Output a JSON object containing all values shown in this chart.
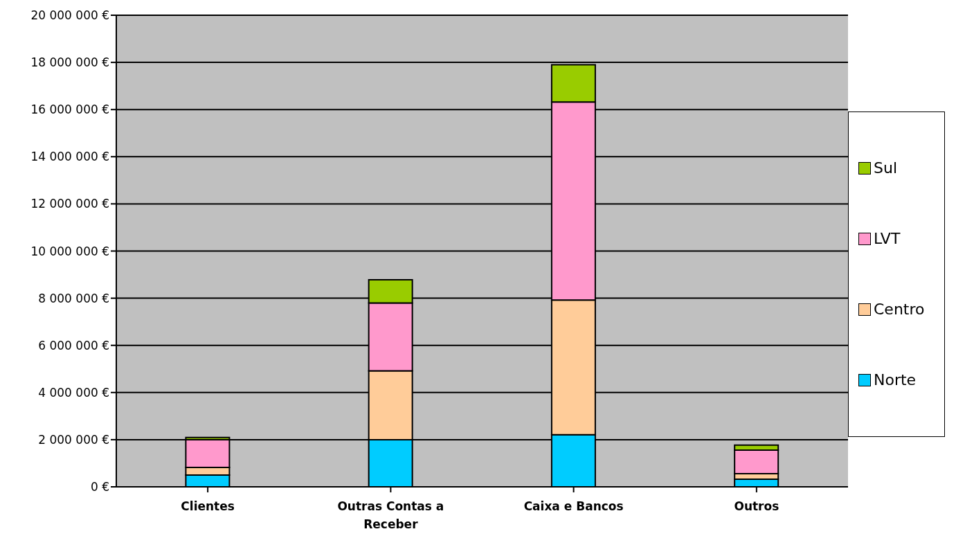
{
  "chart_data": {
    "type": "bar",
    "stacked": true,
    "categories": [
      "Clientes",
      "Outras Contas a Receber",
      "Caixa e Bancos",
      "Outros"
    ],
    "series": [
      {
        "name": "Norte",
        "color": "#00ccff",
        "values": [
          500000,
          2000000,
          2210000,
          320000
        ]
      },
      {
        "name": "Centro",
        "color": "#ffcc99",
        "values": [
          320000,
          2920000,
          5710000,
          240000
        ]
      },
      {
        "name": "LVT",
        "color": "#ff99cc",
        "values": [
          1180000,
          2880000,
          8400000,
          1000000
        ]
      },
      {
        "name": "Sul",
        "color": "#99cc00",
        "values": [
          90000,
          980000,
          1580000,
          210000
        ]
      }
    ],
    "ylim": [
      0,
      20000000
    ],
    "yticks": [
      {
        "value": 0,
        "label": "0 €"
      },
      {
        "value": 2000000,
        "label": "2 000 000 €"
      },
      {
        "value": 4000000,
        "label": "4 000 000 €"
      },
      {
        "value": 6000000,
        "label": "6 000 000 €"
      },
      {
        "value": 8000000,
        "label": "8 000 000 €"
      },
      {
        "value": 10000000,
        "label": "10 000 000 €"
      },
      {
        "value": 12000000,
        "label": "12 000 000 €"
      },
      {
        "value": 14000000,
        "label": "14 000 000 €"
      },
      {
        "value": 16000000,
        "label": "16 000 000 €"
      },
      {
        "value": 18000000,
        "label": "18 000 000 €"
      },
      {
        "value": 20000000,
        "label": "20 000 000 €"
      }
    ],
    "grid": "y",
    "legend": "right"
  }
}
